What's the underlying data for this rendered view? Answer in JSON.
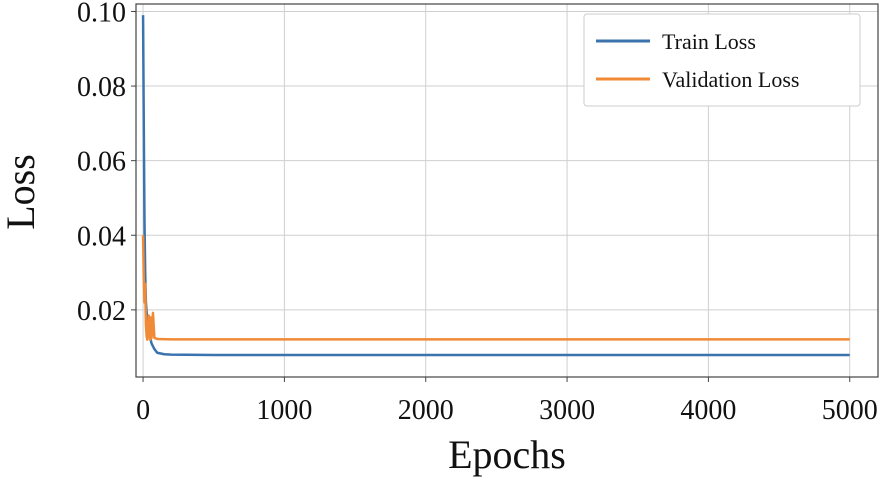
{
  "chart_data": {
    "type": "line",
    "title": "",
    "xlabel": "Epochs",
    "ylabel": "Loss",
    "xlim": [
      -50,
      5200
    ],
    "ylim": [
      0.002,
      0.102
    ],
    "xticks": [
      0,
      1000,
      2000,
      3000,
      4000,
      5000
    ],
    "xtick_labels": [
      "0",
      "1000",
      "2000",
      "3000",
      "4000",
      "5000"
    ],
    "yticks": [
      0.02,
      0.04,
      0.06,
      0.08,
      0.1
    ],
    "ytick_labels": [
      "0.02",
      "0.04",
      "0.06",
      "0.08",
      "0.10"
    ],
    "grid": true,
    "legend_position": "top-right",
    "series": [
      {
        "name": "Train Loss",
        "color": "#3b73ae",
        "x": [
          0,
          5,
          10,
          15,
          20,
          30,
          40,
          50,
          60,
          80,
          100,
          150,
          200,
          500,
          1000,
          2000,
          3000,
          4000,
          5000
        ],
        "y": [
          0.099,
          0.07,
          0.044,
          0.03,
          0.022,
          0.017,
          0.014,
          0.0125,
          0.011,
          0.0095,
          0.0085,
          0.0081,
          0.008,
          0.0079,
          0.0079,
          0.0079,
          0.0079,
          0.0079,
          0.0079
        ]
      },
      {
        "name": "Validation Loss",
        "color": "#f08a36",
        "x": [
          0,
          5,
          10,
          15,
          20,
          25,
          30,
          40,
          50,
          55,
          60,
          70,
          80,
          100,
          200,
          500,
          1000,
          2000,
          3000,
          4000,
          5000
        ],
        "y": [
          0.04,
          0.028,
          0.022,
          0.027,
          0.016,
          0.013,
          0.012,
          0.0185,
          0.012,
          0.018,
          0.0125,
          0.0192,
          0.0125,
          0.0122,
          0.0121,
          0.0121,
          0.0121,
          0.0121,
          0.0121,
          0.0121,
          0.0121
        ]
      }
    ]
  }
}
